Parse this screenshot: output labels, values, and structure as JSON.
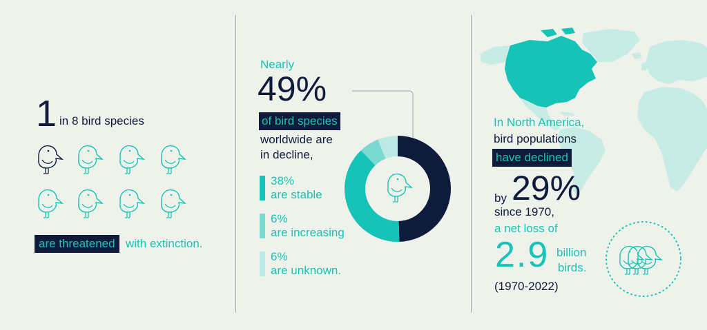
{
  "colors": {
    "navy": "#0f1b3b",
    "teal": "#15c4b7",
    "teal_mid": "#7ad9d0",
    "teal_light": "#bce9e3",
    "map_land": "#c6ece5",
    "map_highlight": "#15c4b7",
    "background": "#eef2ea"
  },
  "panel1": {
    "big_number": "1",
    "species_text": "in 8 bird species",
    "highlight_text": "are threatened",
    "rest_text": "with extinction.",
    "icons": [
      "bird-icon-navy",
      "bird-icon-teal"
    ]
  },
  "panel2": {
    "nearly": "Nearly",
    "big_pct": "49%",
    "highlight_text": "of bird species",
    "body_line1": "worldwide are",
    "body_line2": "in decline,",
    "legend": [
      {
        "pct": "38%",
        "label": "are stable",
        "color": "#15c4b7"
      },
      {
        "pct": "6%",
        "label": "are increasing",
        "color": "#7ad9d0"
      },
      {
        "pct": "6%",
        "label": "are unknown.",
        "color": "#bce9e3"
      }
    ]
  },
  "chart_data": {
    "type": "pie",
    "donut": true,
    "categories": [
      "in decline",
      "stable",
      "increasing",
      "unknown"
    ],
    "values": [
      49,
      38,
      6,
      6
    ],
    "colors": [
      "#0f1b3b",
      "#15c4b7",
      "#7ad9d0",
      "#bce9e3"
    ]
  },
  "panel3": {
    "line1": "In North America,",
    "line2": "bird populations",
    "highlight_text": "have declined",
    "by": "by",
    "big_pct": "29%",
    "since": "since 1970,",
    "net_loss": "a net loss of",
    "big_num": "2.9",
    "billion": "billion",
    "birds": "birds.",
    "years": "(1970-2022)"
  }
}
